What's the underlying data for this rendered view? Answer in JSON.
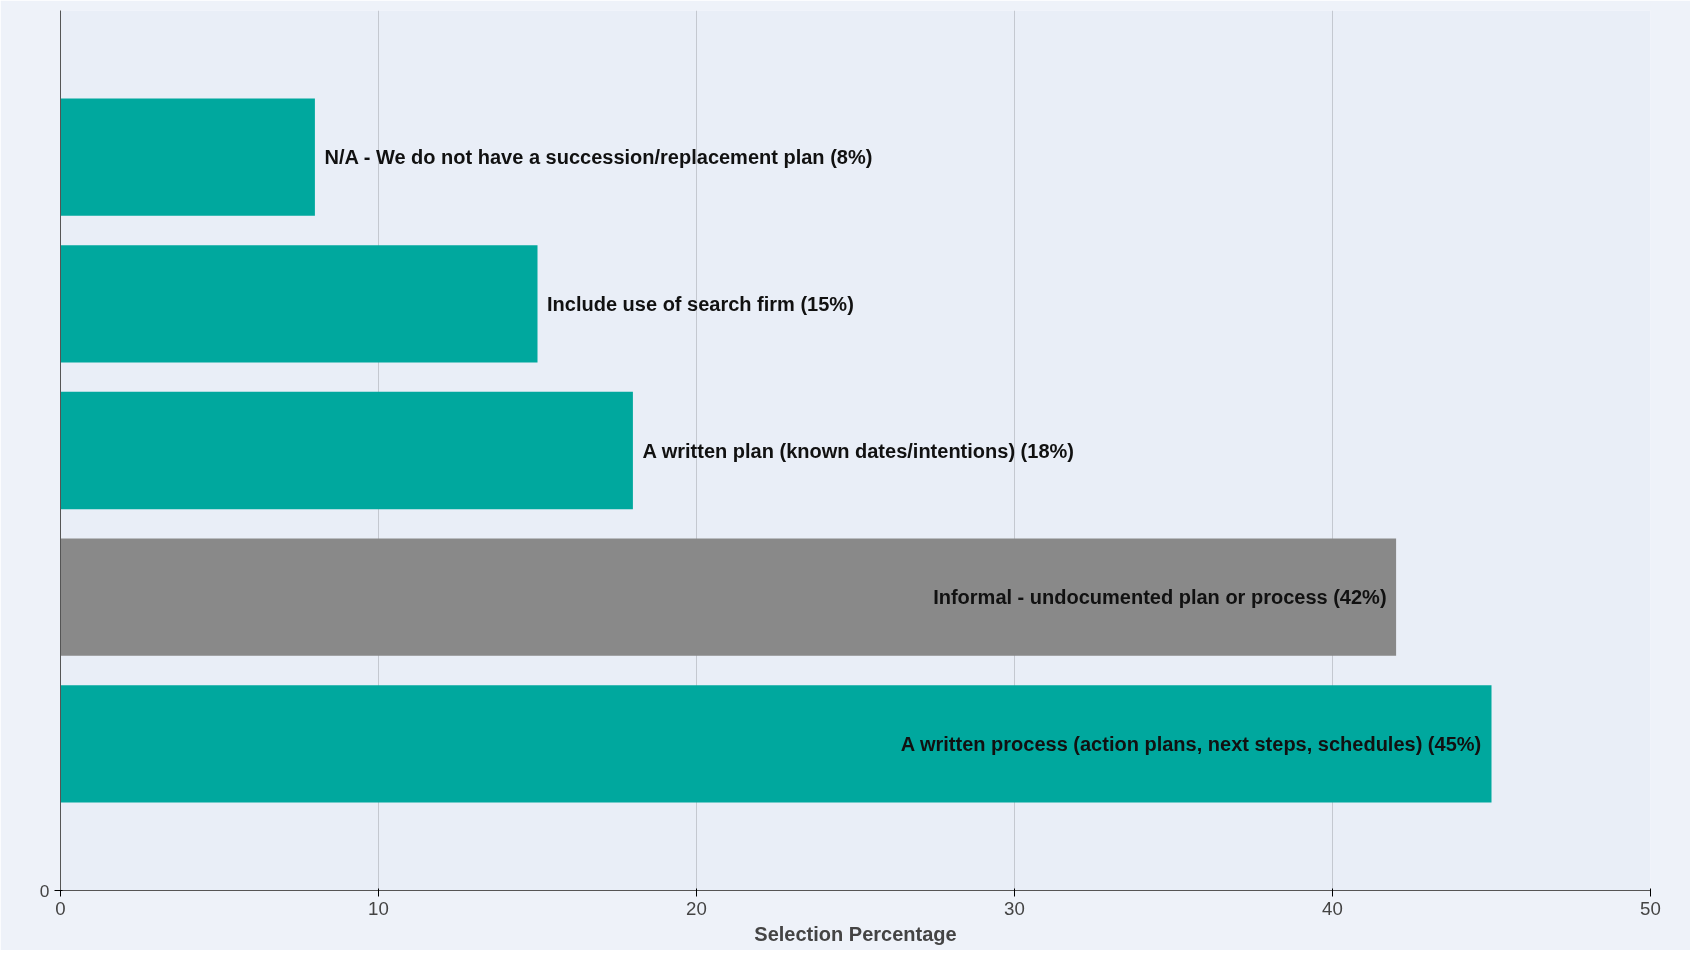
{
  "chart_data": {
    "type": "bar",
    "orientation": "horizontal",
    "xlabel": "Selection Percentage",
    "categories": [
      null,
      null,
      null,
      null,
      null
    ],
    "values": [
      8,
      15,
      18,
      42,
      45
    ],
    "colors": [
      "#00a89e",
      "#00a89e",
      "#00a89e",
      "#898989",
      "#00a89e"
    ],
    "value_labels": [
      "N/A - We do not have a succession/replacement plan (8%)",
      "Include use of search firm (15%)",
      "A written plan (known dates/intentions) (18%)",
      "Informal - undocumented plan or process (42%)",
      "A written process (action plans, next steps, schedules) (45%)"
    ],
    "xlim": [
      0,
      50
    ],
    "xticks": [
      0,
      10,
      20,
      30,
      40,
      50
    ],
    "annotations": [
      "0"
    ],
    "grid": "x"
  }
}
